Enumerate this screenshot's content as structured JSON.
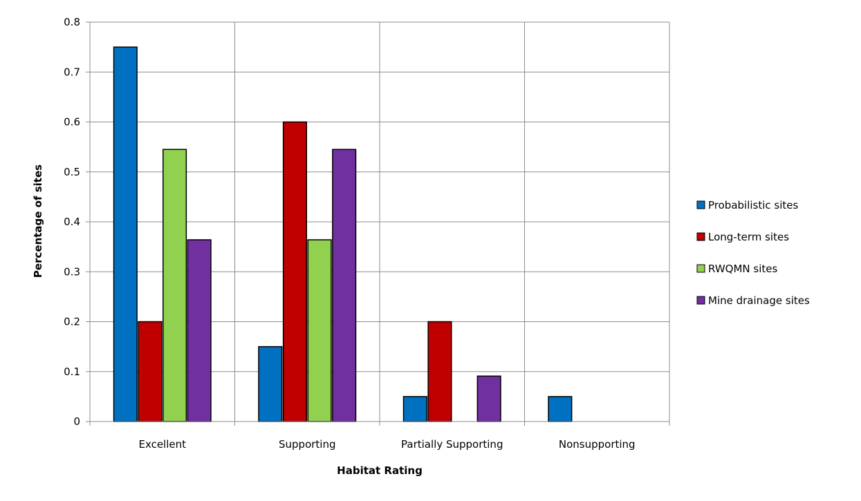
{
  "chart_data": {
    "type": "bar",
    "title": "",
    "xlabel": "Habitat Rating",
    "ylabel": "Percentage of sites",
    "ylim": [
      0,
      0.8
    ],
    "yticks": [
      "0",
      "0.1",
      "0.2",
      "0.3",
      "0.4",
      "0.5",
      "0.6",
      "0.7",
      "0.8"
    ],
    "categories": [
      "Excellent",
      "Supporting",
      "Partially Supporting",
      "Nonsupporting"
    ],
    "series": [
      {
        "name": "Probabilistic sites",
        "color": "#0070C0",
        "values": [
          0.75,
          0.15,
          0.05,
          0.05
        ]
      },
      {
        "name": "Long-term sites",
        "color": "#C00000",
        "values": [
          0.2,
          0.6,
          0.2,
          0
        ]
      },
      {
        "name": "RWQMN sites",
        "color": "#92D050",
        "values": [
          0.545,
          0.364,
          0,
          0
        ]
      },
      {
        "name": "Mine drainage sites",
        "color": "#7030A0",
        "values": [
          0.364,
          0.545,
          0.091,
          0
        ]
      }
    ],
    "grid": true,
    "legend_position": "right"
  }
}
